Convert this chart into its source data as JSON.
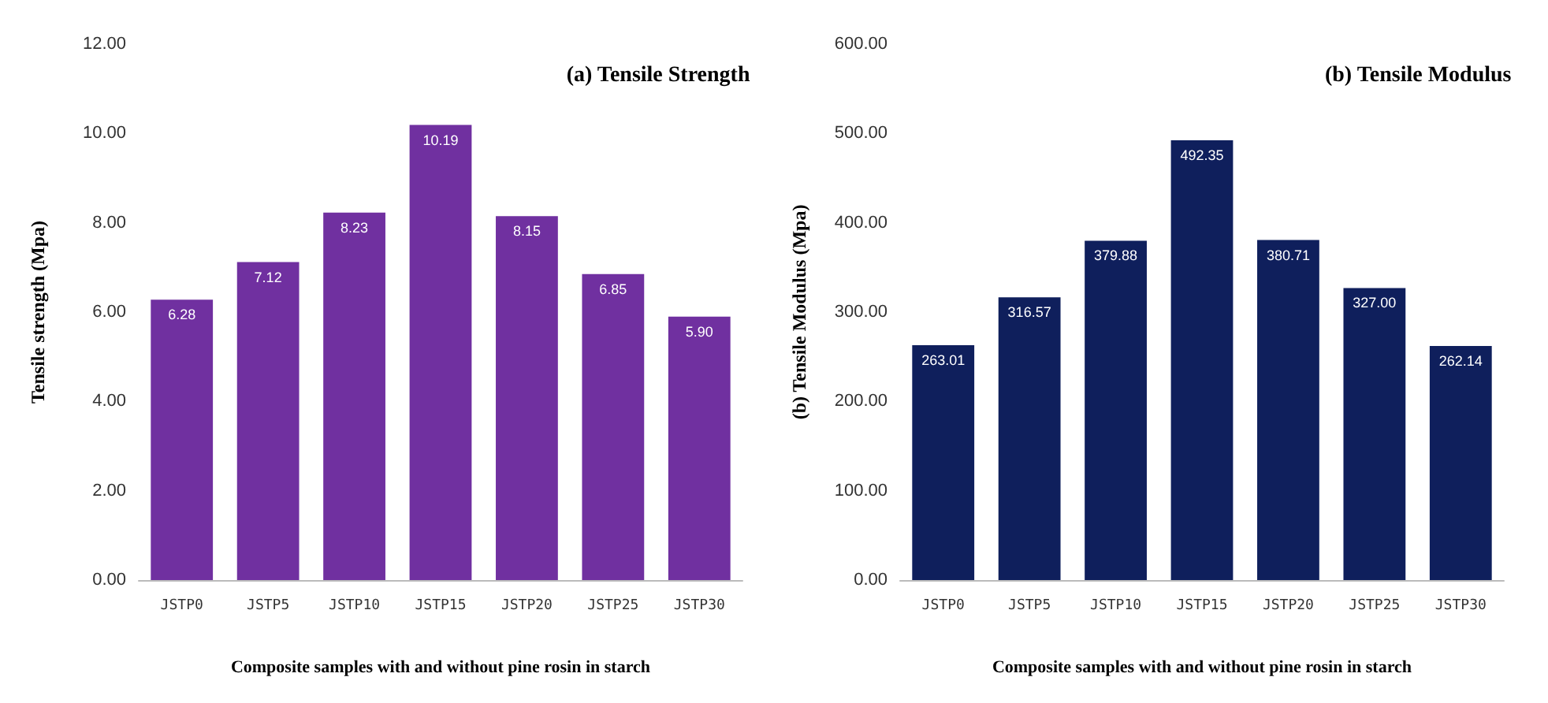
{
  "chart_data": [
    {
      "type": "bar",
      "title": "(a) Tensile Strength",
      "xlabel": "Composite samples with and without pine rosin in starch",
      "ylabel": "Tensile strength (Mpa)",
      "categories": [
        "JSTP0",
        "JSTP5",
        "JSTP10",
        "JSTP15",
        "JSTP20",
        "JSTP25",
        "JSTP30"
      ],
      "values": [
        6.28,
        7.12,
        8.23,
        10.19,
        8.15,
        6.85,
        5.9
      ],
      "value_labels": [
        "6.28",
        "7.12",
        "8.23",
        "10.19",
        "8.15",
        "6.85",
        "5.90"
      ],
      "color": "#7030a0",
      "ylim": [
        0,
        12
      ],
      "yticks": [
        {
          "value": 0,
          "label": "0.00"
        },
        {
          "value": 2,
          "label": "2.00"
        },
        {
          "value": 4,
          "label": "4.00"
        },
        {
          "value": 6,
          "label": "6.00"
        },
        {
          "value": 8,
          "label": "8.00"
        },
        {
          "value": 10,
          "label": "10.00"
        },
        {
          "value": 12,
          "label": "12.00"
        }
      ],
      "grid": false
    },
    {
      "type": "bar",
      "title": "(b) Tensile Modulus",
      "xlabel": "Composite samples with and without pine rosin in starch",
      "ylabel": "(b) Tensile Modulus (Mpa)",
      "categories": [
        "JSTP0",
        "JSTP5",
        "JSTP10",
        "JSTP15",
        "JSTP20",
        "JSTP25",
        "JSTP30"
      ],
      "values": [
        263.01,
        316.57,
        379.88,
        492.35,
        380.71,
        327.0,
        262.14
      ],
      "value_labels": [
        "263.01",
        "316.57",
        "379.88",
        "492.35",
        "380.71",
        "327.00",
        "262.14"
      ],
      "color": "#0f1f5c",
      "ylim": [
        0,
        600
      ],
      "yticks": [
        {
          "value": 0,
          "label": "0.00"
        },
        {
          "value": 100,
          "label": "100.00"
        },
        {
          "value": 200,
          "label": "200.00"
        },
        {
          "value": 300,
          "label": "300.00"
        },
        {
          "value": 400,
          "label": "400.00"
        },
        {
          "value": 500,
          "label": "500.00"
        },
        {
          "value": 600,
          "label": "600.00"
        }
      ],
      "grid": false
    }
  ]
}
